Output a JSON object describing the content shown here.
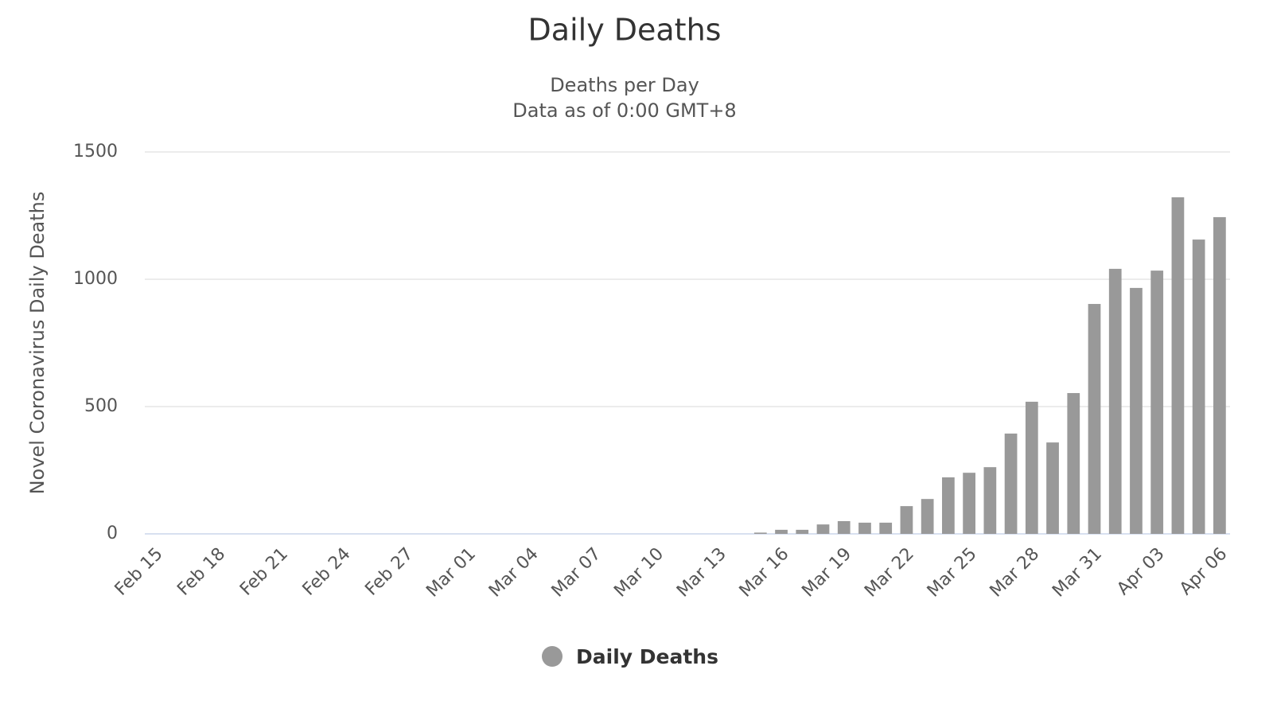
{
  "chart_data": {
    "type": "bar",
    "title": "Daily Deaths",
    "subtitle": [
      "Deaths per Day",
      "Data as of 0:00 GMT+8"
    ],
    "y_label": "Novel Coronavirus Daily Deaths",
    "categories": [
      "Feb 15",
      null,
      null,
      "Feb 18",
      null,
      null,
      "Feb 21",
      null,
      null,
      "Feb 24",
      null,
      null,
      "Feb 27",
      null,
      null,
      "Mar 01",
      null,
      null,
      "Mar 04",
      null,
      null,
      "Mar 07",
      null,
      null,
      "Mar 10",
      null,
      null,
      "Mar 13",
      null,
      null,
      "Mar 16",
      null,
      null,
      "Mar 19",
      null,
      null,
      "Mar 22",
      null,
      null,
      "Mar 25",
      null,
      null,
      "Mar 28",
      null,
      null,
      "Mar 31",
      null,
      null,
      "Apr 03",
      null,
      null,
      "Apr 06"
    ],
    "series": [
      {
        "name": "Daily Deaths",
        "color": "#999999",
        "values": [
          0,
          0,
          0,
          0,
          0,
          0,
          0,
          0,
          0,
          0,
          0,
          0,
          0,
          0,
          0,
          0,
          0,
          0,
          0,
          0,
          0,
          0,
          0,
          0,
          0,
          0,
          0,
          0,
          0,
          5,
          16,
          16,
          37,
          50,
          44,
          44,
          109,
          137,
          222,
          240,
          262,
          394,
          519,
          359,
          553,
          903,
          1041,
          966,
          1034,
          1322,
          1156,
          1244
        ]
      }
    ],
    "ylim": [
      0,
      1500
    ],
    "yticks": [
      0,
      500,
      1000,
      1500
    ],
    "grid": true
  }
}
